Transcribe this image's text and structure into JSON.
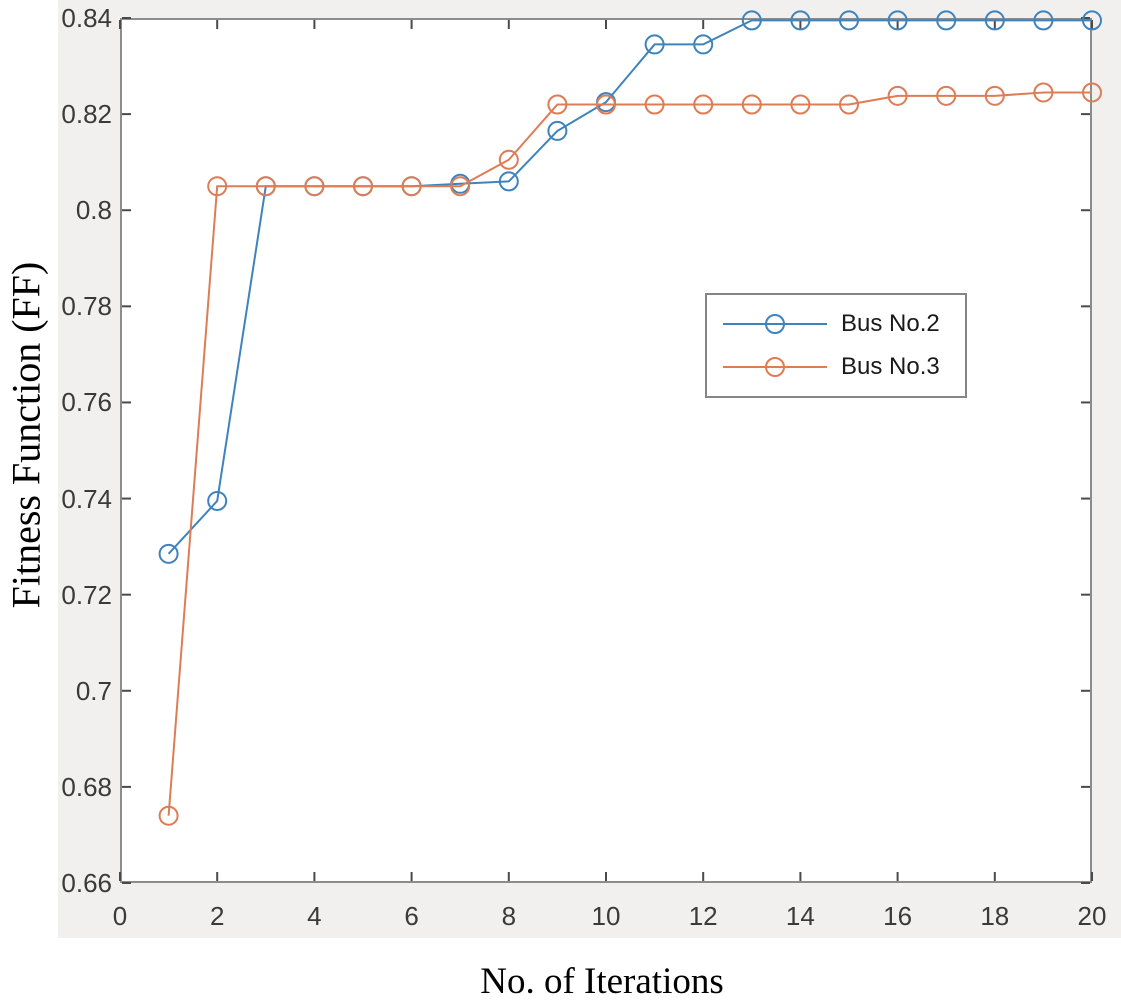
{
  "chart_data": {
    "type": "line",
    "title": "",
    "xlabel": "No. of Iterations",
    "ylabel": "Fitness Function (FF)",
    "xlim": [
      0,
      20
    ],
    "ylim": [
      0.66,
      0.84
    ],
    "grid": false,
    "legend_position": "upper-right-inset",
    "xticks": [
      0,
      2,
      4,
      6,
      8,
      10,
      12,
      14,
      16,
      18,
      20
    ],
    "xtick_labels": [
      "0",
      "2",
      "4",
      "6",
      "8",
      "10",
      "12",
      "14",
      "16",
      "18",
      "20"
    ],
    "yticks": [
      0.66,
      0.68,
      0.7,
      0.72,
      0.74,
      0.76,
      0.78,
      0.8,
      0.82,
      0.84
    ],
    "ytick_labels": [
      "0.66",
      "0.68",
      "0.7",
      "0.72",
      "0.74",
      "0.76",
      "0.78",
      "0.8",
      "0.82",
      "0.84"
    ],
    "x": [
      1,
      2,
      3,
      4,
      5,
      6,
      7,
      8,
      9,
      10,
      11,
      12,
      13,
      14,
      15,
      16,
      17,
      18,
      19,
      20
    ],
    "series": [
      {
        "name": "Bus No.2",
        "color": "#3f83bd",
        "marker": "circle",
        "values": [
          0.7285,
          0.7395,
          0.805,
          0.805,
          0.805,
          0.805,
          0.8055,
          0.806,
          0.8165,
          0.8225,
          0.8345,
          0.8345,
          0.8395,
          0.8395,
          0.8395,
          0.8395,
          0.8395,
          0.8395,
          0.8395,
          0.8395
        ]
      },
      {
        "name": "Bus No.3",
        "color": "#dd7c55",
        "marker": "circle",
        "values": [
          0.674,
          0.805,
          0.805,
          0.805,
          0.805,
          0.805,
          0.805,
          0.8105,
          0.822,
          0.822,
          0.822,
          0.822,
          0.822,
          0.822,
          0.822,
          0.8238,
          0.8238,
          0.8238,
          0.8245,
          0.8245
        ]
      }
    ]
  },
  "style": {
    "figure_background": "#f1f0ee",
    "outer_background": "#ffffff",
    "plot_background": "#ffffff",
    "axis_color": "#8c8c8c",
    "tick_color": "#4a4a4a",
    "tick_label_color": "#3a3a3a",
    "label_color": "#000000",
    "legend_border_color": "#858585",
    "line_width": 2,
    "marker_radius": 9
  }
}
